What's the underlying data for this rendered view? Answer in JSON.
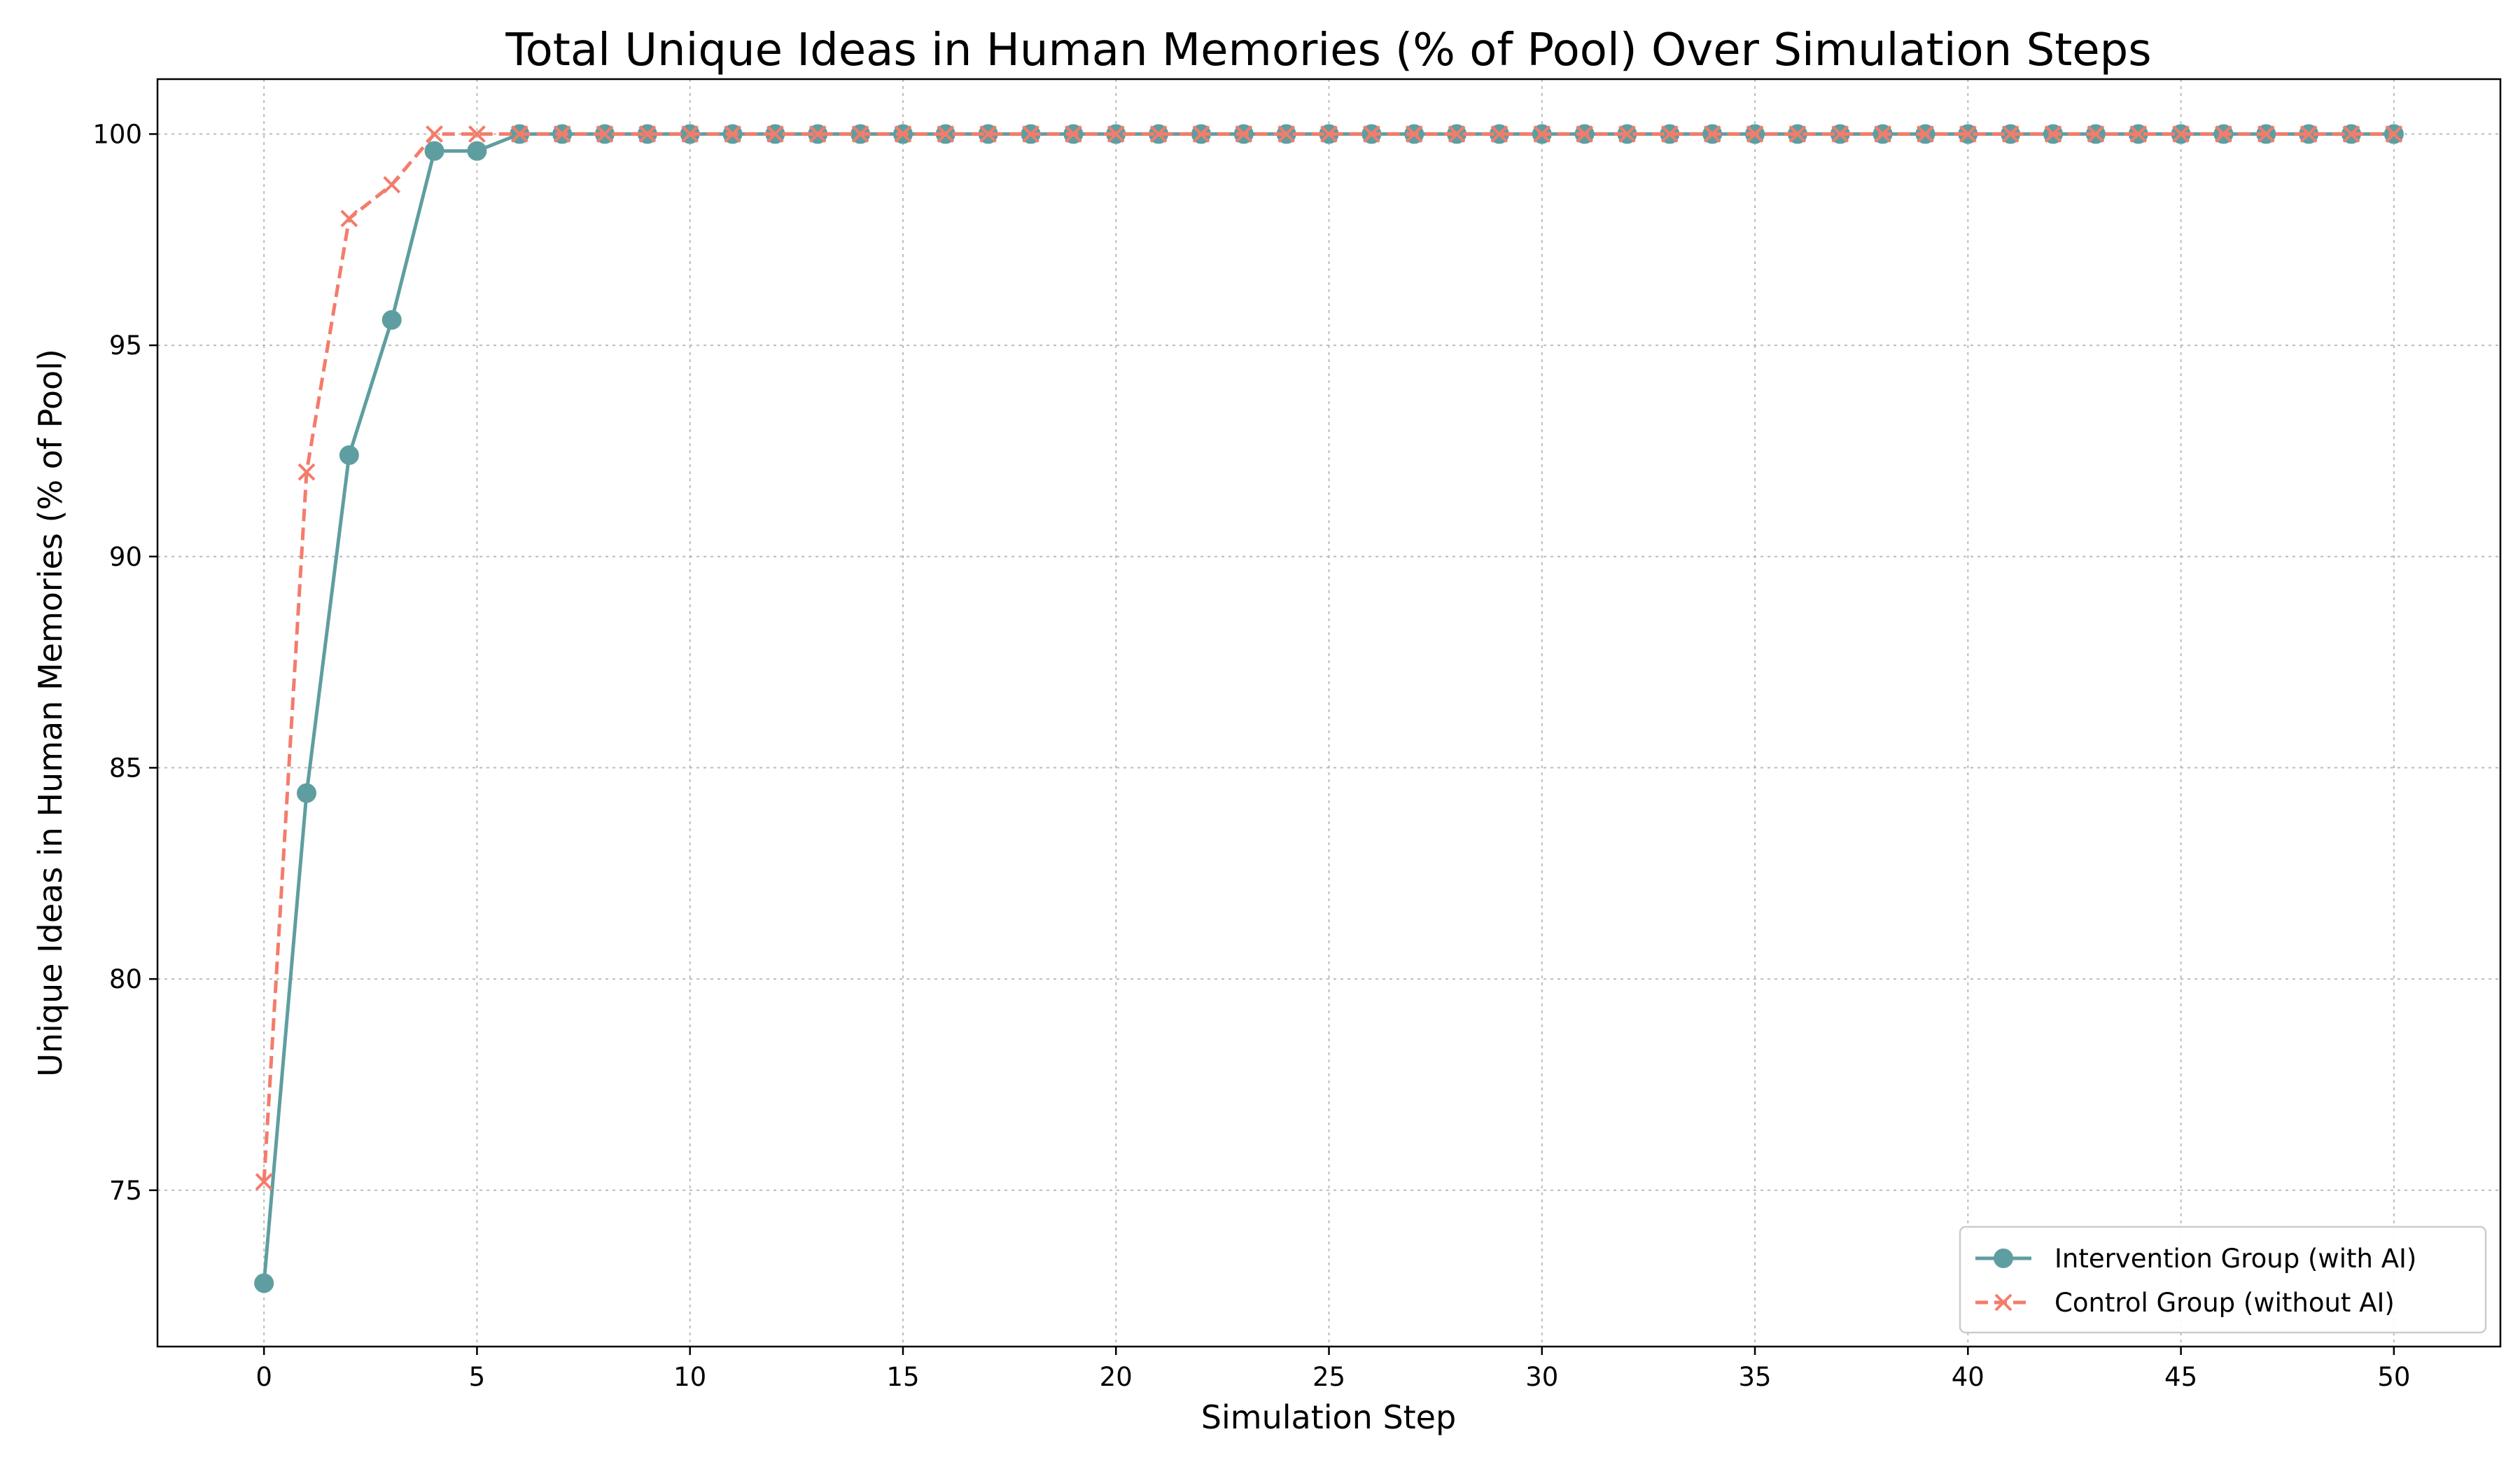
{
  "chart_data": {
    "type": "line",
    "title": "Total Unique Ideas in Human Memories (% of Pool) Over Simulation Steps",
    "xlabel": "Simulation Step",
    "ylabel": "Unique Ideas in Human Memories (% of Pool)",
    "xlim": [
      -2.5,
      52.5
    ],
    "ylim": [
      71.3,
      101.3
    ],
    "xticks": [
      0,
      5,
      10,
      15,
      20,
      25,
      30,
      35,
      40,
      45,
      50
    ],
    "yticks": [
      75,
      80,
      85,
      90,
      95,
      100
    ],
    "grid": true,
    "legend_position": "lower-right",
    "x": [
      0,
      1,
      2,
      3,
      4,
      5,
      6,
      7,
      8,
      9,
      10,
      11,
      12,
      13,
      14,
      15,
      16,
      17,
      18,
      19,
      20,
      21,
      22,
      23,
      24,
      25,
      26,
      27,
      28,
      29,
      30,
      31,
      32,
      33,
      34,
      35,
      36,
      37,
      38,
      39,
      40,
      41,
      42,
      43,
      44,
      45,
      46,
      47,
      48,
      49,
      50
    ],
    "series": [
      {
        "name": "Intervention Group (with AI)",
        "color": "#5f9ea0",
        "line_style": "solid",
        "marker": "circle",
        "values": [
          72.8,
          84.4,
          92.4,
          95.6,
          99.6,
          99.6,
          100,
          100,
          100,
          100,
          100,
          100,
          100,
          100,
          100,
          100,
          100,
          100,
          100,
          100,
          100,
          100,
          100,
          100,
          100,
          100,
          100,
          100,
          100,
          100,
          100,
          100,
          100,
          100,
          100,
          100,
          100,
          100,
          100,
          100,
          100,
          100,
          100,
          100,
          100,
          100,
          100,
          100,
          100,
          100,
          100
        ]
      },
      {
        "name": "Control Group (without AI)",
        "color": "#f47c6b",
        "line_style": "dashed",
        "marker": "x",
        "values": [
          75.2,
          92.0,
          98.0,
          98.8,
          100,
          100,
          100,
          100,
          100,
          100,
          100,
          100,
          100,
          100,
          100,
          100,
          100,
          100,
          100,
          100,
          100,
          100,
          100,
          100,
          100,
          100,
          100,
          100,
          100,
          100,
          100,
          100,
          100,
          100,
          100,
          100,
          100,
          100,
          100,
          100,
          100,
          100,
          100,
          100,
          100,
          100,
          100,
          100,
          100,
          100,
          100
        ]
      }
    ]
  }
}
